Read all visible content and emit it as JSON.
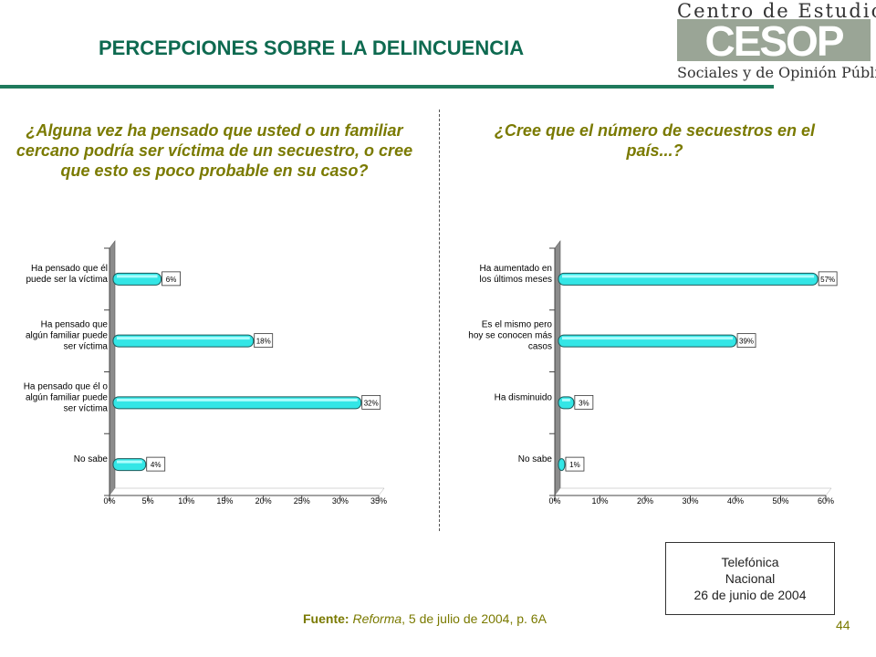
{
  "slide": {
    "title": "PERCEPCIONES SOBRE LA DELINCUENCIA",
    "page_number": "44"
  },
  "logo": {
    "top_text": "Centro de Estudios",
    "mark_text": "CESOP",
    "bottom_text": "Sociales y de Opinión Pública"
  },
  "note": {
    "line1": "Telefónica",
    "line2": "Nacional",
    "line3": "26 de junio de 2004"
  },
  "source": {
    "label": "Fuente:",
    "publication": "Reforma",
    "rest": ", 5 de julio de 2004, p. 6A"
  },
  "colors": {
    "title": "#0e6a50",
    "question": "#7a7a00",
    "bar": "#33e6e6",
    "rule": "#1f7a5c"
  },
  "chart_data": [
    {
      "type": "bar",
      "orientation": "horizontal",
      "title": "¿Alguna vez ha pensado que usted o un familiar cercano podría ser víctima de un secuestro, o cree que esto es poco probable en su caso?",
      "categories": [
        [
          "Ha pensado que él",
          "puede ser la víctima"
        ],
        [
          "Ha pensado que",
          "algún familiar puede",
          "ser víctima"
        ],
        [
          "Ha pensado que él o",
          "algún familiar puede",
          "ser víctima"
        ],
        [
          "No sabe"
        ]
      ],
      "values": [
        6,
        18,
        32,
        4
      ],
      "value_labels": [
        "6%",
        "18%",
        "32%",
        "4%"
      ],
      "xlim": [
        0,
        35
      ],
      "xticks": [
        "0%",
        "5%",
        "10%",
        "15%",
        "20%",
        "25%",
        "30%",
        "35%"
      ],
      "grid": false
    },
    {
      "type": "bar",
      "orientation": "horizontal",
      "title": "¿Cree que el número de secuestros en el país...?",
      "categories": [
        [
          "Ha aumentado en",
          "los últimos meses"
        ],
        [
          "Es el mismo pero",
          "hoy se conocen más",
          "casos"
        ],
        [
          "Ha disminuido"
        ],
        [
          "No sabe"
        ]
      ],
      "values": [
        57,
        39,
        3,
        1
      ],
      "value_labels": [
        "57%",
        "39%",
        "3%",
        "1%"
      ],
      "xlim": [
        0,
        60
      ],
      "xticks": [
        "0%",
        "10%",
        "20%",
        "30%",
        "40%",
        "50%",
        "60%"
      ],
      "grid": false
    }
  ]
}
